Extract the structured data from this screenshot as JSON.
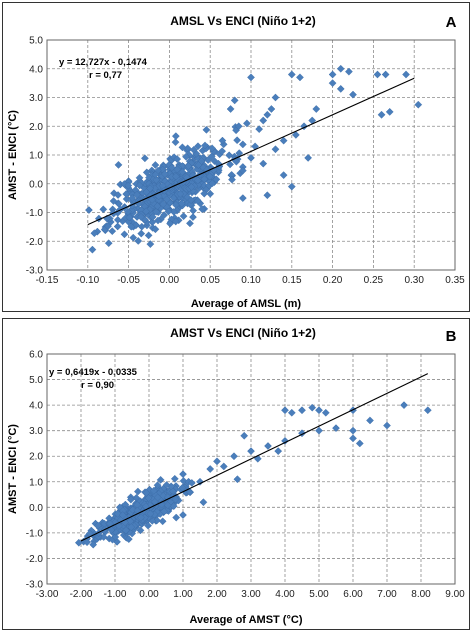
{
  "chart_data": [
    {
      "type": "scatter",
      "panel_label": "A",
      "title": "AMSL Vs ENCI (Niño 1+2)",
      "xlabel": "Average of AMSL (m)",
      "ylabel": "AMST - ENCI (°C)",
      "xlim": [
        -0.15,
        0.35
      ],
      "ylim": [
        -3.0,
        5.0
      ],
      "x_ticks": [
        -0.15,
        -0.1,
        -0.05,
        0.0,
        0.05,
        0.1,
        0.15,
        0.2,
        0.25,
        0.3,
        0.35
      ],
      "x_tick_labels": [
        "-0.15",
        "-0.10",
        "-0.05",
        "0.00",
        "0.05",
        "0.10",
        "0.15",
        "0.20",
        "0.25",
        "0.30",
        "0.35"
      ],
      "y_ticks": [
        -3,
        -2,
        -1,
        0,
        1,
        2,
        3,
        4,
        5
      ],
      "y_tick_labels": [
        "-3.0",
        "-2.0",
        "-1.0",
        "0.0",
        "1.0",
        "2.0",
        "3.0",
        "4.0",
        "5.0"
      ],
      "grid": true,
      "equation": "y = 12,727x - 0,1474",
      "r_text": "r  =  0,77",
      "trendline": {
        "slope": 12.727,
        "intercept": -0.1474,
        "x_range": [
          -0.1,
          0.3
        ]
      },
      "marker_color": "#4a7ebb",
      "cluster": {
        "n": 560,
        "x_center": 0.0,
        "x_sd": 0.035,
        "x_range": [
          -0.105,
          0.09
        ],
        "resid_sd": 0.55,
        "seed": 11
      },
      "points": [
        [
          0.1,
          3.7
        ],
        [
          0.15,
          3.8
        ],
        [
          0.16,
          3.7
        ],
        [
          0.2,
          3.8
        ],
        [
          0.21,
          4.0
        ],
        [
          0.22,
          3.9
        ],
        [
          0.255,
          3.8
        ],
        [
          0.265,
          3.8
        ],
        [
          0.29,
          3.8
        ],
        [
          0.305,
          2.75
        ],
        [
          0.27,
          2.5
        ],
        [
          0.26,
          2.4
        ],
        [
          0.225,
          3.1
        ],
        [
          0.21,
          3.3
        ],
        [
          0.2,
          3.5
        ],
        [
          0.18,
          2.6
        ],
        [
          0.175,
          2.2
        ],
        [
          0.165,
          2.0
        ],
        [
          0.155,
          1.7
        ],
        [
          0.14,
          1.5
        ],
        [
          0.125,
          2.6
        ],
        [
          0.12,
          2.4
        ],
        [
          0.115,
          2.2
        ],
        [
          0.11,
          1.9
        ],
        [
          0.105,
          1.3
        ],
        [
          0.13,
          1.2
        ],
        [
          0.1,
          0.9
        ],
        [
          0.095,
          2.1
        ],
        [
          0.085,
          2.0
        ],
        [
          0.075,
          2.6
        ],
        [
          0.065,
          1.5
        ],
        [
          0.115,
          0.7
        ],
        [
          0.14,
          0.3
        ],
        [
          0.12,
          -0.4
        ],
        [
          0.15,
          -0.1
        ],
        [
          0.17,
          0.9
        ],
        [
          0.13,
          3.0
        ],
        [
          0.08,
          2.9
        ],
        [
          0.06,
          0.7
        ],
        [
          0.09,
          -0.5
        ]
      ]
    },
    {
      "type": "scatter",
      "panel_label": "B",
      "title": "AMST Vs ENCI (Niño 1+2)",
      "xlabel": "Average of AMST (°C)",
      "ylabel": "AMST - ENCI (°C)",
      "xlim": [
        -3.0,
        9.0
      ],
      "ylim": [
        -3.0,
        6.0
      ],
      "x_ticks": [
        -3,
        -2,
        -1,
        0,
        1,
        2,
        3,
        4,
        5,
        6,
        7,
        8,
        9
      ],
      "x_tick_labels": [
        "-3.00",
        "-2.00",
        "-1.00",
        "0.00",
        "1.00",
        "2.00",
        "3.00",
        "4.00",
        "5.00",
        "6.00",
        "7.00",
        "8.00",
        "9.00"
      ],
      "y_ticks": [
        -3,
        -2,
        -1,
        0,
        1,
        2,
        3,
        4,
        5,
        6
      ],
      "y_tick_labels": [
        "-3.0",
        "-2.0",
        "-1.0",
        "0.0",
        "1.0",
        "2.0",
        "3.0",
        "4.0",
        "5.0",
        "6.0"
      ],
      "grid": true,
      "equation": "y = 0,6419x - 0,0335",
      "r_text": "r  =  0,90",
      "trendline": {
        "slope": 0.6419,
        "intercept": -0.0335,
        "x_range": [
          -2.0,
          8.2
        ]
      },
      "marker_color": "#4a7ebb",
      "cluster": {
        "n": 560,
        "x_center": -0.3,
        "x_sd": 0.6,
        "x_range": [
          -2.1,
          1.3
        ],
        "resid_sd": 0.28,
        "seed": 23
      },
      "points": [
        [
          4.0,
          3.8
        ],
        [
          4.2,
          3.7
        ],
        [
          4.5,
          3.8
        ],
        [
          4.8,
          3.9
        ],
        [
          5.0,
          3.8
        ],
        [
          5.2,
          3.7
        ],
        [
          6.0,
          3.8
        ],
        [
          7.5,
          4.0
        ],
        [
          8.2,
          3.8
        ],
        [
          6.5,
          3.4
        ],
        [
          6.0,
          3.0
        ],
        [
          5.5,
          3.1
        ],
        [
          5.0,
          3.0
        ],
        [
          4.5,
          2.9
        ],
        [
          6.0,
          2.7
        ],
        [
          6.2,
          2.5
        ],
        [
          7.0,
          3.2
        ],
        [
          4.0,
          2.6
        ],
        [
          3.5,
          2.4
        ],
        [
          3.0,
          2.2
        ],
        [
          3.8,
          2.2
        ],
        [
          2.5,
          2.0
        ],
        [
          2.0,
          1.8
        ],
        [
          1.8,
          1.5
        ],
        [
          2.2,
          1.6
        ],
        [
          1.5,
          1.0
        ],
        [
          1.2,
          0.6
        ],
        [
          1.0,
          1.3
        ],
        [
          2.8,
          2.8
        ],
        [
          1.6,
          0.2
        ],
        [
          1.0,
          -0.3
        ],
        [
          0.8,
          -0.4
        ],
        [
          3.2,
          1.9
        ],
        [
          2.6,
          1.1
        ]
      ]
    }
  ]
}
